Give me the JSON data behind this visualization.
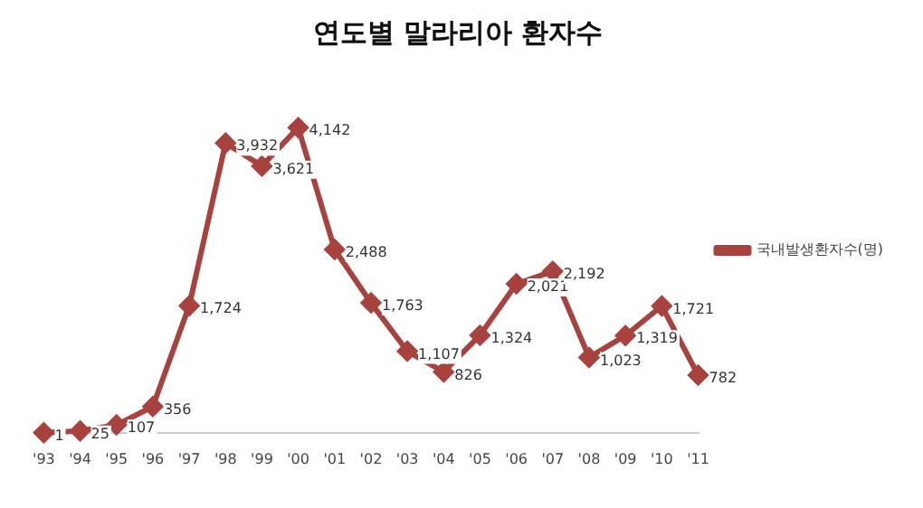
{
  "chart_data": {
    "type": "line",
    "title": "연도별 말라리아 환자수",
    "categories": [
      "'93",
      "'94",
      "'95",
      "'96",
      "'97",
      "'98",
      "'99",
      "'00",
      "'01",
      "'02",
      "'03",
      "'04",
      "'05",
      "'06",
      "'07",
      "'08",
      "'09",
      "'10",
      "'11"
    ],
    "series": [
      {
        "name": "국내발생환자수(명)",
        "color": "#a8423e",
        "values": [
          1,
          25,
          107,
          356,
          1724,
          3932,
          3621,
          4142,
          2488,
          1763,
          1107,
          826,
          1324,
          2021,
          2192,
          1023,
          1319,
          1721,
          782
        ],
        "value_labels": [
          "1",
          "25",
          "107",
          "356",
          "1,724",
          "3,932",
          "3,621",
          "4,142",
          "2,488",
          "1,763",
          "1,107",
          "826",
          "1,324",
          "2,021",
          "2,192",
          "1,023",
          "1,319",
          "1,721",
          "782"
        ]
      }
    ],
    "legend": "right",
    "marker": "diamond",
    "line_style": "solid",
    "grid": false
  }
}
